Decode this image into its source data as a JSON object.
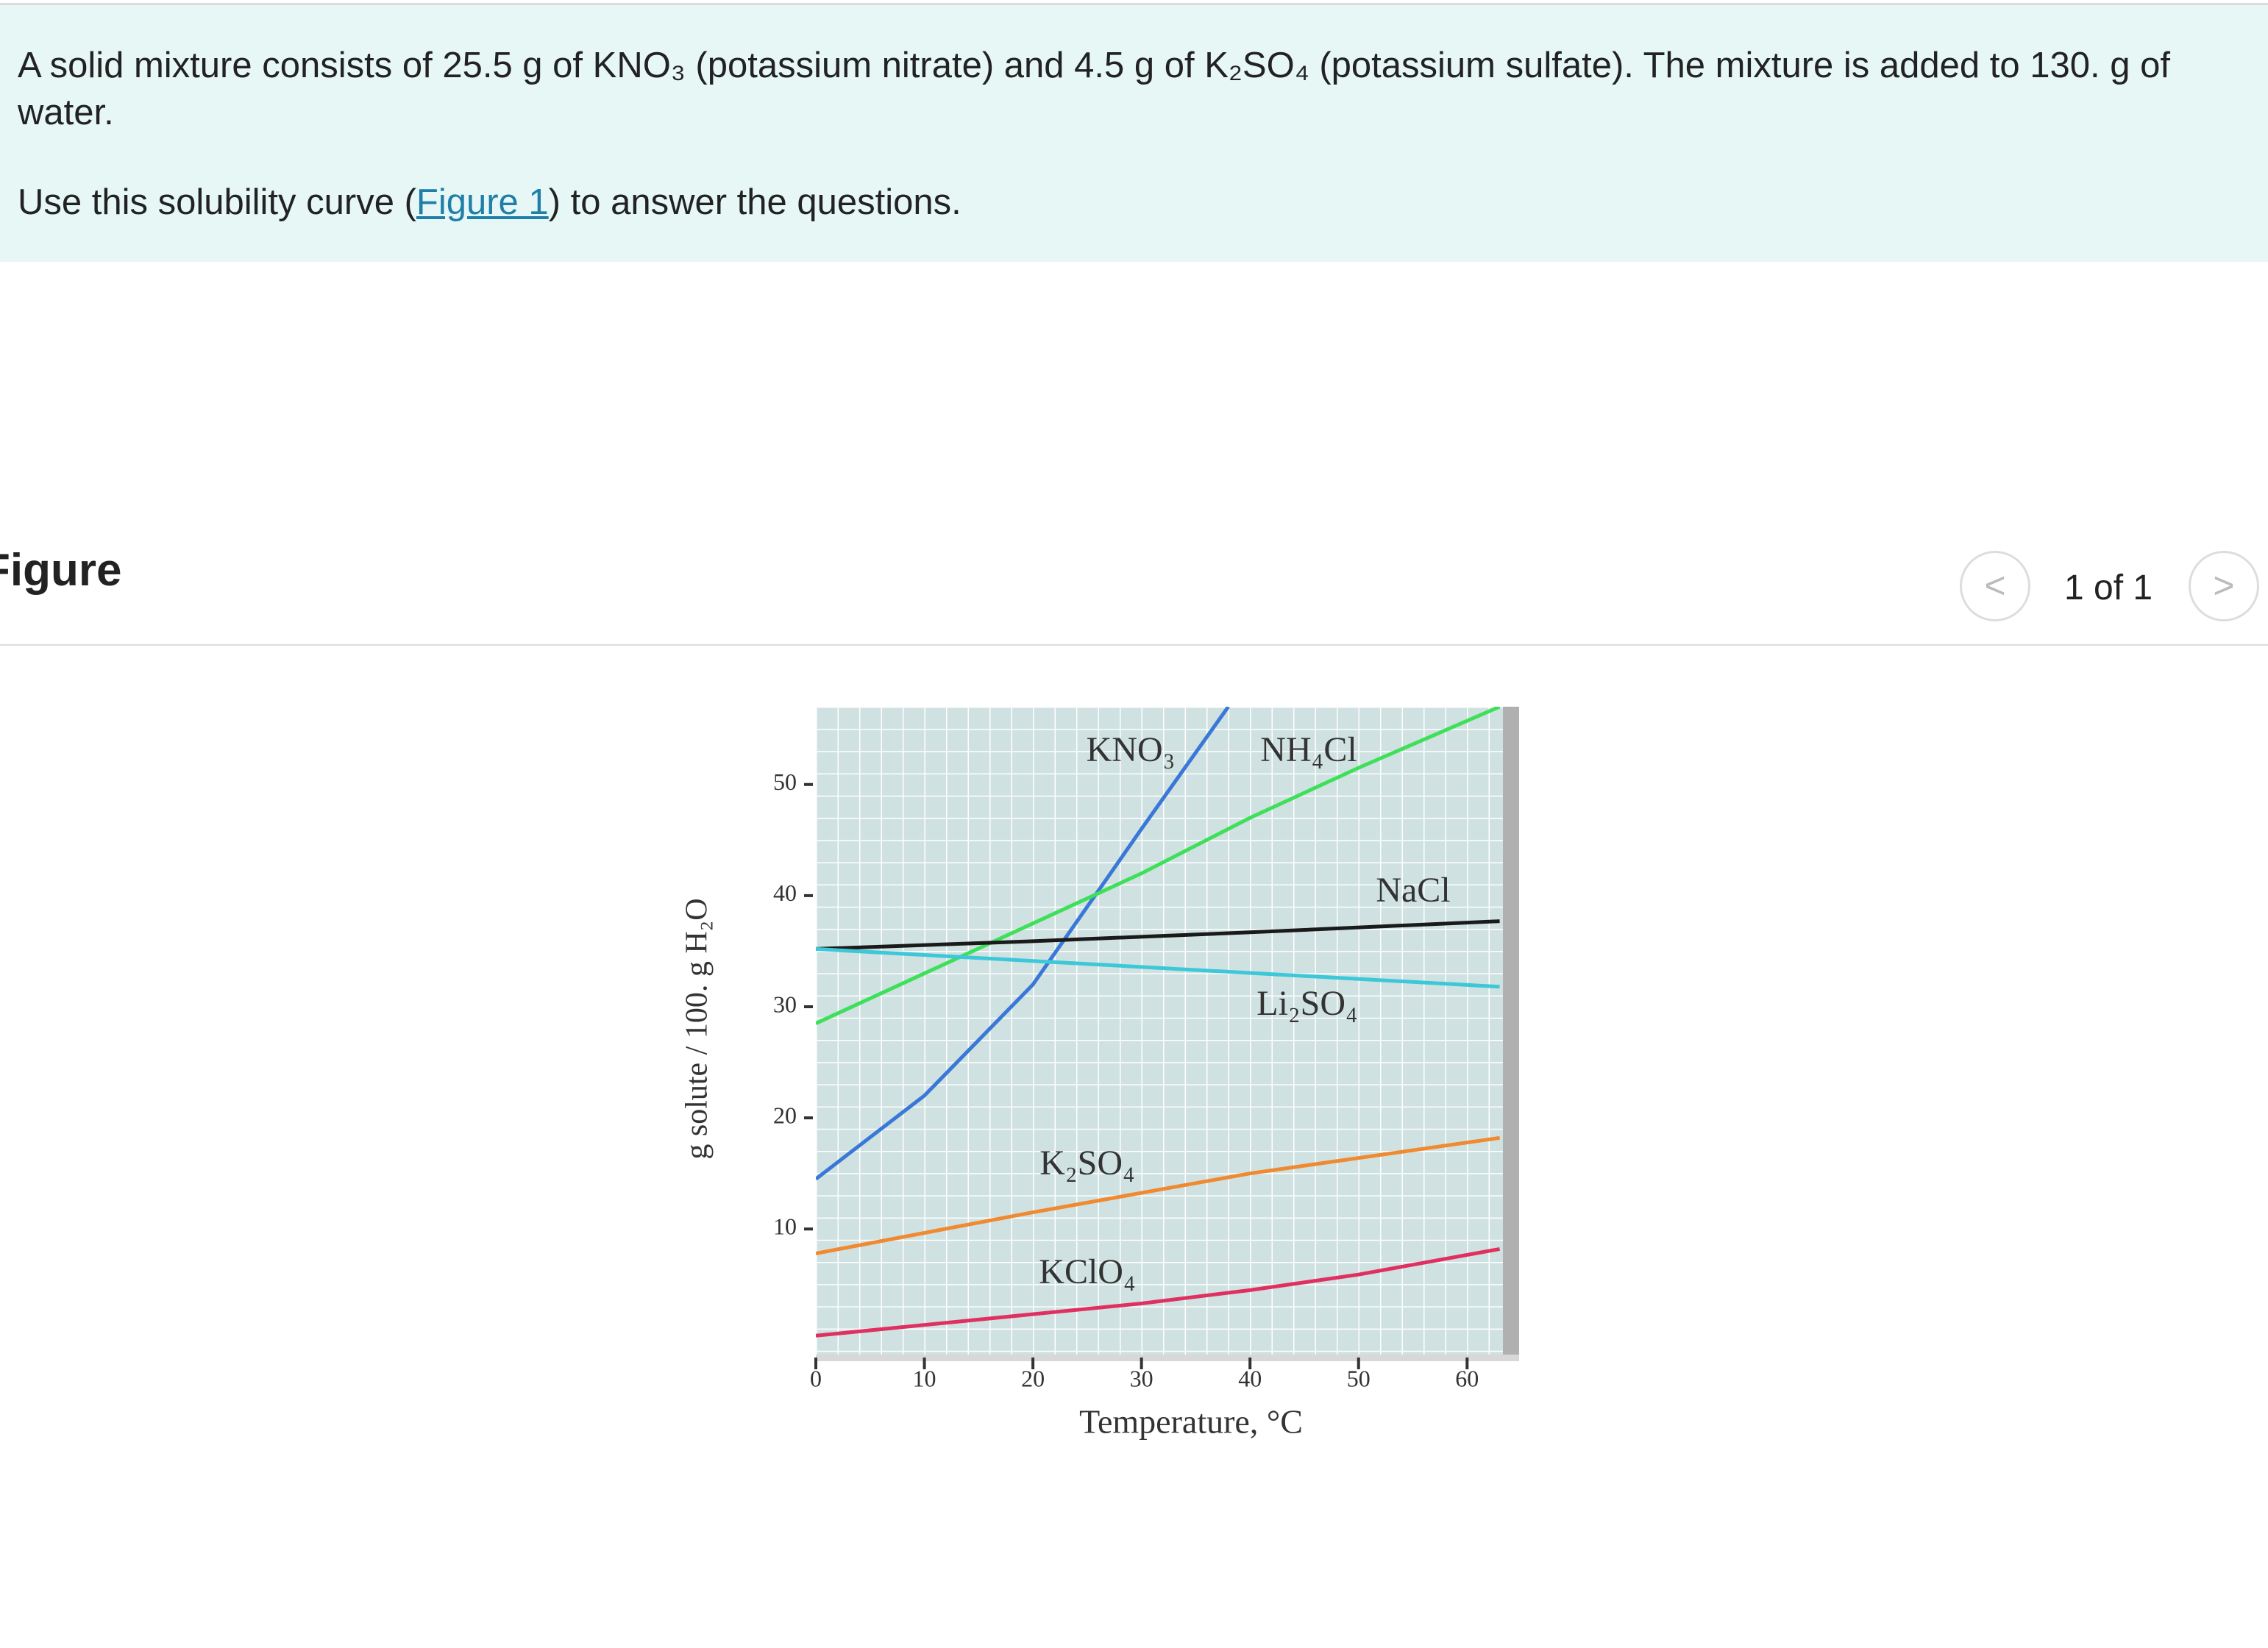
{
  "problem": {
    "paragraph": "A solid mixture consists of 25.5 g of KNO₃ (potassium nitrate) and 4.5 g of K₂SO₄ (potassium sulfate).  The mixture is added to 130. g of water.",
    "instruction_before": "Use this solubility curve (",
    "instruction_link": "Figure 1",
    "instruction_after": ") to answer the questions."
  },
  "figure_header": {
    "title": "Figure",
    "pager": "1 of 1"
  },
  "chart_data": {
    "type": "line",
    "xlabel": "Temperature, °C",
    "ylabel": "g solute / 100. g H₂O",
    "xlim": [
      0,
      63.3
    ],
    "ylim": [
      -1.3,
      57
    ],
    "xticks": [
      0,
      10,
      20,
      30,
      40,
      50,
      60
    ],
    "yticks": [
      10,
      20,
      30,
      40,
      50
    ],
    "grid": true,
    "series": [
      {
        "name": "KNO₃",
        "color": "#3a78d8",
        "x": [
          0,
          10,
          20,
          30,
          38
        ],
        "values": [
          14.5,
          22,
          32,
          46,
          57
        ]
      },
      {
        "name": "NH₄Cl",
        "color": "#3ee05a",
        "x": [
          0,
          10,
          20,
          30,
          40,
          50,
          63
        ],
        "values": [
          28.5,
          33,
          37.5,
          42,
          47,
          51.5,
          57
        ]
      },
      {
        "name": "NaCl",
        "color": "#1a1a1a",
        "x": [
          0,
          20,
          40,
          63
        ],
        "values": [
          35.2,
          35.9,
          36.7,
          37.7
        ]
      },
      {
        "name": "Li₂SO₄",
        "color": "#3cc8d8",
        "x": [
          0,
          63
        ],
        "values": [
          35.2,
          31.8
        ]
      },
      {
        "name": "K₂SO₄",
        "color": "#f08a30",
        "x": [
          0,
          20,
          40,
          63
        ],
        "values": [
          7.8,
          11.5,
          15,
          18.2
        ]
      },
      {
        "name": "KClO₄",
        "color": "#e03060",
        "x": [
          0,
          30,
          40,
          50,
          63
        ],
        "values": [
          0.4,
          3.3,
          4.5,
          5.9,
          8.2
        ]
      }
    ]
  }
}
